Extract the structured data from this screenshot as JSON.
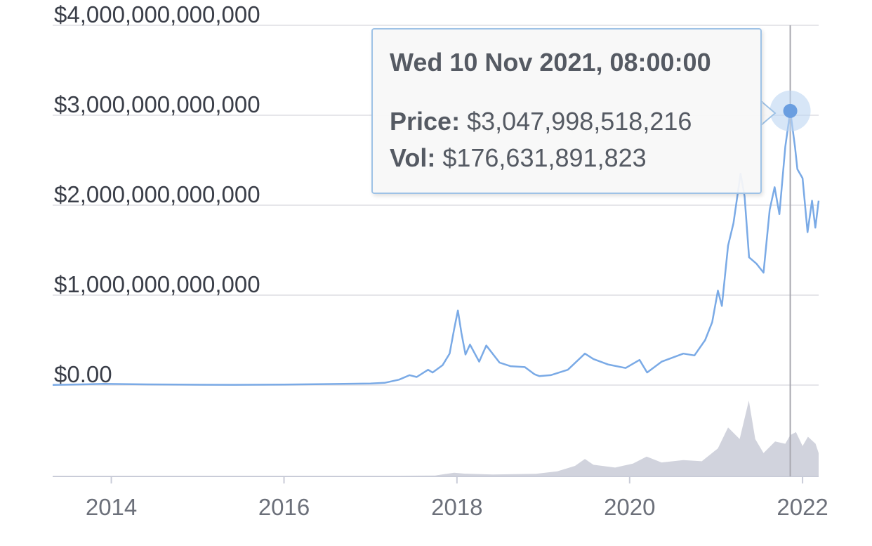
{
  "chart_data": {
    "type": "area",
    "title": "",
    "xlabel": "",
    "ylabel": "",
    "y_ticks": [
      {
        "value": 0,
        "label": "$0.00"
      },
      {
        "value": 1000000000000,
        "label": "$1,000,000,000,000"
      },
      {
        "value": 2000000000000,
        "label": "$2,000,000,000,000"
      },
      {
        "value": 3000000000000,
        "label": "$3,000,000,000,000"
      },
      {
        "value": 4000000000000,
        "label": "$4,000,000,000,000"
      }
    ],
    "x_ticks": [
      {
        "value": "2014-01-01",
        "label": "2014"
      },
      {
        "value": "2016-01-01",
        "label": "2016"
      },
      {
        "value": "2018-01-01",
        "label": "2018"
      },
      {
        "value": "2020-01-01",
        "label": "2020"
      },
      {
        "value": "2022-01-01",
        "label": "2022"
      }
    ],
    "xlim": [
      "2013-04-28",
      "2022-03-10"
    ],
    "ylim": [
      0,
      4000000000000
    ],
    "grid": true,
    "series": [
      {
        "color": "#7aaae6",
        "points": [
          [
            "2013-04-28",
            1500000000.0
          ],
          [
            "2013-11-30",
            13000000000.0
          ],
          [
            "2014-06-01",
            8000000000.0
          ],
          [
            "2015-01-15",
            4000000000.0
          ],
          [
            "2015-06-01",
            3500000000.0
          ],
          [
            "2016-01-01",
            6000000000.0
          ],
          [
            "2016-06-15",
            11000000000.0
          ],
          [
            "2017-01-01",
            18000000000.0
          ],
          [
            "2017-03-01",
            25000000000.0
          ],
          [
            "2017-05-01",
            60000000000.0
          ],
          [
            "2017-06-15",
            110000000000.0
          ],
          [
            "2017-07-15",
            90000000000.0
          ],
          [
            "2017-09-01",
            170000000000.0
          ],
          [
            "2017-09-20",
            140000000000.0
          ],
          [
            "2017-11-01",
            220000000000.0
          ],
          [
            "2017-12-01",
            350000000000.0
          ],
          [
            "2017-12-20",
            620000000000.0
          ],
          [
            "2018-01-05",
            830000000000.0
          ],
          [
            "2018-01-20",
            580000000000.0
          ],
          [
            "2018-02-06",
            340000000000.0
          ],
          [
            "2018-02-25",
            450000000000.0
          ],
          [
            "2018-04-05",
            260000000000.0
          ],
          [
            "2018-05-05",
            440000000000.0
          ],
          [
            "2018-06-30",
            250000000000.0
          ],
          [
            "2018-08-15",
            210000000000.0
          ],
          [
            "2018-10-15",
            200000000000.0
          ],
          [
            "2018-11-25",
            120000000000.0
          ],
          [
            "2018-12-15",
            100000000000.0
          ],
          [
            "2019-02-01",
            110000000000.0
          ],
          [
            "2019-04-15",
            170000000000.0
          ],
          [
            "2019-06-26",
            350000000000.0
          ],
          [
            "2019-08-01",
            290000000000.0
          ],
          [
            "2019-10-01",
            230000000000.0
          ],
          [
            "2019-12-15",
            190000000000.0
          ],
          [
            "2020-02-12",
            280000000000.0
          ],
          [
            "2020-03-15",
            140000000000.0
          ],
          [
            "2020-05-15",
            260000000000.0
          ],
          [
            "2020-08-15",
            350000000000.0
          ],
          [
            "2020-10-01",
            330000000000.0
          ],
          [
            "2020-11-15",
            500000000000.0
          ],
          [
            "2020-12-15",
            700000000000.0
          ],
          [
            "2021-01-08",
            1050000000000.0
          ],
          [
            "2021-01-25",
            880000000000.0
          ],
          [
            "2021-02-20",
            1550000000000.0
          ],
          [
            "2021-03-15",
            1800000000000.0
          ],
          [
            "2021-04-14",
            2350000000000.0
          ],
          [
            "2021-05-01",
            2100000000000.0
          ],
          [
            "2021-05-20",
            1420000000000.0
          ],
          [
            "2021-06-20",
            1350000000000.0
          ],
          [
            "2021-07-20",
            1250000000000.0
          ],
          [
            "2021-08-15",
            1950000000000.0
          ],
          [
            "2021-09-05",
            2200000000000.0
          ],
          [
            "2021-09-25",
            1900000000000.0
          ],
          [
            "2021-10-20",
            2650000000000.0
          ],
          [
            "2021-11-10",
            3048000000000.0
          ],
          [
            "2021-11-30",
            2650000000000.0
          ],
          [
            "2021-12-10",
            2400000000000.0
          ],
          [
            "2022-01-01",
            2300000000000.0
          ],
          [
            "2022-01-22",
            1700000000000.0
          ],
          [
            "2022-02-10",
            2050000000000.0
          ],
          [
            "2022-02-24",
            1750000000000.0
          ],
          [
            "2022-03-10",
            2050000000000.0
          ]
        ]
      },
      {
        "color": "#c9cbd7",
        "points": [
          [
            "2013-04-28",
            200000000.0
          ],
          [
            "2016-06-01",
            1000000000.0
          ],
          [
            "2017-05-01",
            3000000000.0
          ],
          [
            "2017-10-01",
            4000000000.0
          ],
          [
            "2017-12-20",
            16000000000.0
          ],
          [
            "2018-02-01",
            12000000000.0
          ],
          [
            "2018-06-01",
            8000000000.0
          ],
          [
            "2018-12-01",
            11000000000.0
          ],
          [
            "2019-03-01",
            22000000000.0
          ],
          [
            "2019-05-15",
            45000000000.0
          ],
          [
            "2019-06-26",
            75000000000.0
          ],
          [
            "2019-08-01",
            50000000000.0
          ],
          [
            "2019-11-01",
            38000000000.0
          ],
          [
            "2020-01-15",
            55000000000.0
          ],
          [
            "2020-03-13",
            85000000000.0
          ],
          [
            "2020-05-15",
            60000000000.0
          ],
          [
            "2020-08-15",
            70000000000.0
          ],
          [
            "2020-11-01",
            65000000000.0
          ],
          [
            "2021-01-08",
            120000000000.0
          ],
          [
            "2021-02-20",
            210000000000.0
          ],
          [
            "2021-04-10",
            160000000000.0
          ],
          [
            "2021-05-19",
            325000000000.0
          ],
          [
            "2021-06-15",
            160000000000.0
          ],
          [
            "2021-07-20",
            100000000000.0
          ],
          [
            "2021-09-07",
            150000000000.0
          ],
          [
            "2021-10-20",
            140000000000.0
          ],
          [
            "2021-11-10",
            177000000000.0
          ],
          [
            "2021-12-04",
            190000000000.0
          ],
          [
            "2022-01-01",
            130000000000.0
          ],
          [
            "2022-01-24",
            170000000000.0
          ],
          [
            "2022-02-25",
            140000000000.0
          ],
          [
            "2022-03-10",
            100000000000.0
          ]
        ]
      }
    ],
    "tooltip": {
      "date": "Wed 10 Nov 2021, 08:00:00",
      "x": "2021-11-10",
      "price_label": "Price:",
      "price_value": "$3,047,998,518,216",
      "price_y": 3047998518216,
      "vol_label": "Vol:",
      "vol_value": "$176,631,891,823"
    }
  },
  "colors": {
    "price_line": "#7aaae6",
    "volume_fill": "#c9cbd7",
    "grid": "#e6e6ea",
    "axis": "#c9ccd8",
    "marker": "#6a9ee0",
    "marker_halo": "#bcd5f1",
    "crosshair": "#a8a8b0"
  }
}
